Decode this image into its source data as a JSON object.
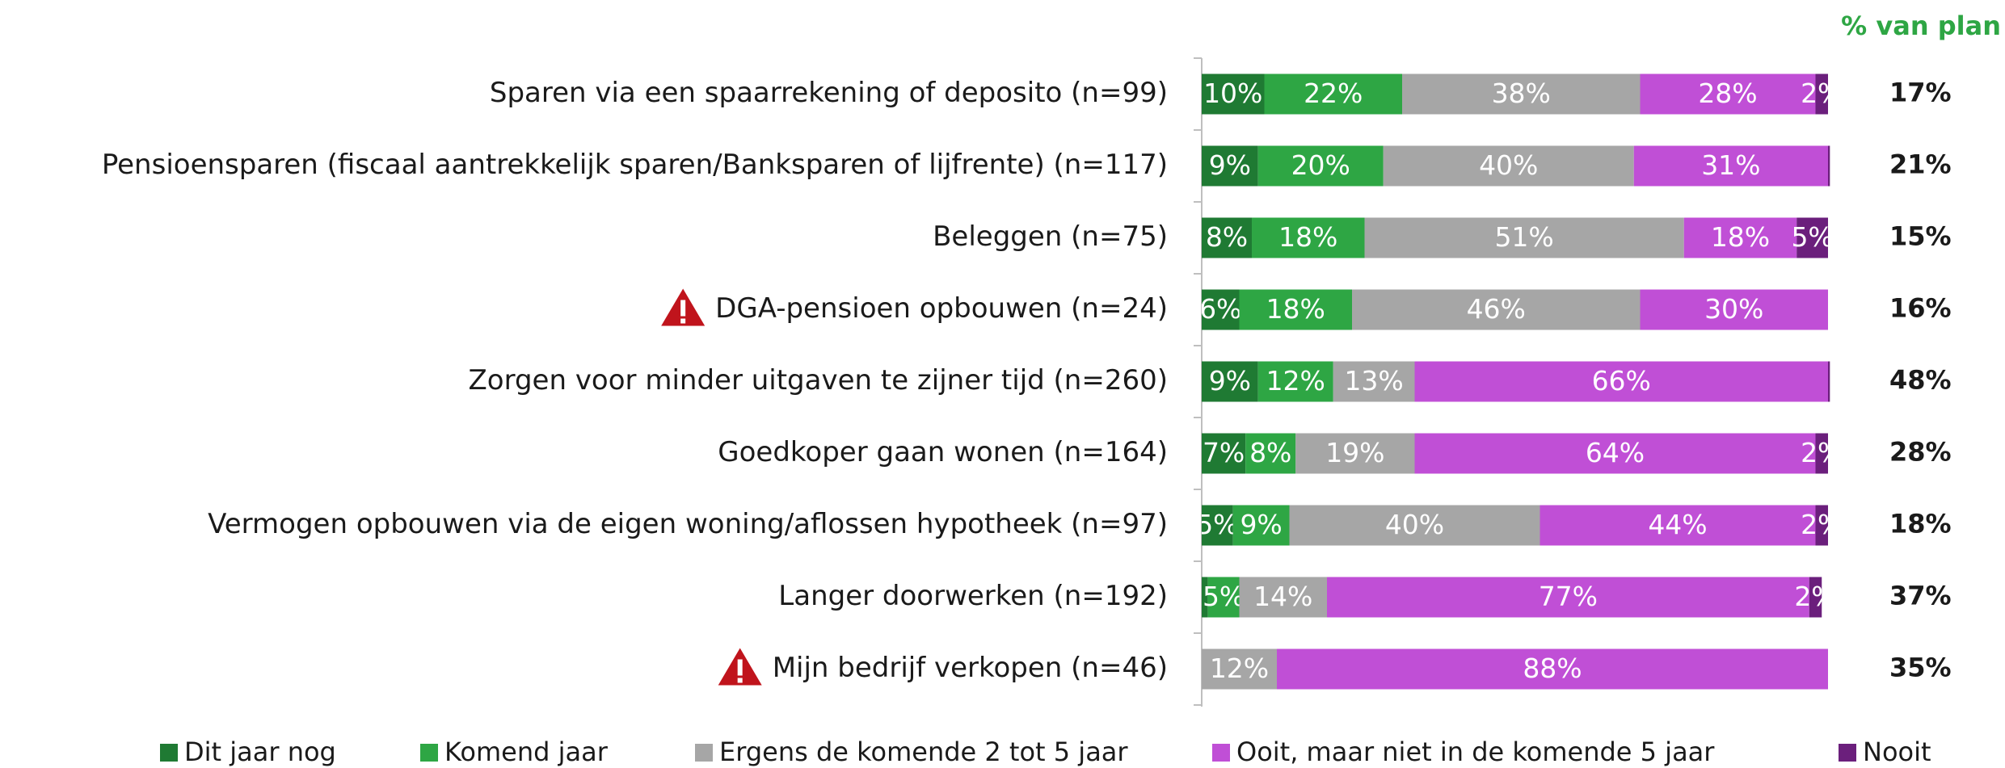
{
  "chart_data": {
    "type": "stacked_barh",
    "categories": [
      "Sparen via een spaarrekening of deposito (n=99)",
      "Pensioensparen (fiscaal aantrekkelijk sparen/Banksparen of lijfrente) (n=117)",
      "Beleggen  (n=75)",
      "DGA-pensioen opbouwen (n=24)",
      "Zorgen voor minder uitgaven te zijner tijd (n=260)",
      "Goedkoper gaan wonen (n=164)",
      "Vermogen opbouwen via de eigen woning/aflossen hypotheek (n=97)",
      "Langer doorwerken (n=192)",
      "Mijn bedrijf verkopen (n=46)"
    ],
    "xlim": [
      0,
      100
    ],
    "series": [
      {
        "name": "Dit jaar nog",
        "color": "#1f7a33",
        "values": [
          10,
          9,
          8,
          6,
          9,
          7,
          5,
          1,
          0
        ],
        "value_labels": [
          "10%",
          "9%",
          "8%",
          "6%",
          "9%",
          "7%",
          "5%",
          null,
          null
        ]
      },
      {
        "name": "Komend jaar",
        "color": "#2ea644",
        "values": [
          22,
          20,
          18,
          18,
          12,
          8,
          9,
          5,
          0
        ],
        "value_labels": [
          "22%",
          "20%",
          "18%",
          "18%",
          "12%",
          "8%",
          "9%",
          "5%",
          null
        ]
      },
      {
        "name": "Ergens de komende 2 tot 5 jaar",
        "color": "#a6a6a6",
        "values": [
          38,
          40,
          51,
          46,
          13,
          19,
          40,
          14,
          12
        ],
        "value_labels": [
          "38%",
          "40%",
          "51%",
          "46%",
          "13%",
          "19%",
          "40%",
          "14%",
          "12%"
        ]
      },
      {
        "name": "Ooit, maar niet in de komende 5 jaar",
        "color": "#c04fd6",
        "values": [
          28,
          31,
          18,
          30,
          66,
          64,
          44,
          77,
          88
        ],
        "value_labels": [
          "28%",
          "31%",
          "18%",
          "30%",
          "66%",
          "64%",
          "44%",
          "77%",
          "88%"
        ]
      },
      {
        "name": "Nooit",
        "color": "#6b1f7c",
        "values": [
          2,
          0.3,
          5,
          0,
          0.3,
          2,
          2,
          2,
          0
        ],
        "value_labels": [
          "2%",
          null,
          "5%",
          null,
          null,
          "2%",
          "2%",
          "2%",
          null
        ]
      }
    ],
    "plan_header": "% van plan",
    "plan_values": [
      17,
      21,
      15,
      16,
      48,
      28,
      18,
      37,
      35
    ],
    "plan_labels": [
      "17%",
      "21%",
      "15%",
      "16%",
      "48%",
      "28%",
      "18%",
      "37%",
      "35%"
    ]
  }
}
